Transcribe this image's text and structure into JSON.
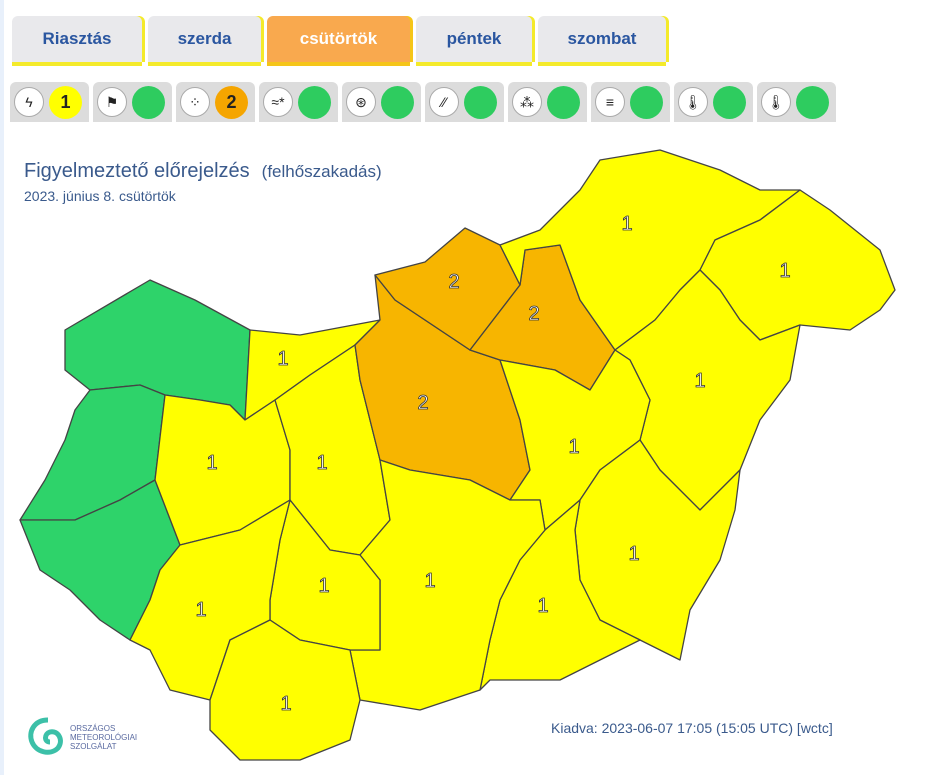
{
  "tabs": [
    {
      "label": "Riasztás"
    },
    {
      "label": "szerda"
    },
    {
      "label": "csütörtök",
      "active": true
    },
    {
      "label": "péntek"
    },
    {
      "label": "szombat"
    }
  ],
  "hazards": [
    {
      "icon": "lightning-icon",
      "glyph": "ϟ",
      "level": "1",
      "color": "#ffff00"
    },
    {
      "icon": "windsock-icon",
      "glyph": "⚑",
      "level": "",
      "color": "#2ecc5f"
    },
    {
      "icon": "cloudburst-icon",
      "glyph": "⁘",
      "level": "2",
      "color": "#f5a500"
    },
    {
      "icon": "snow-drift-icon",
      "glyph": "≈*",
      "level": "",
      "color": "#2ecc5f"
    },
    {
      "icon": "snow-icon",
      "glyph": "⊛",
      "level": "",
      "color": "#2ecc5f"
    },
    {
      "icon": "freezing-rain-icon",
      "glyph": "⁄⁄",
      "level": "",
      "color": "#2ecc5f"
    },
    {
      "icon": "heavy-snow-icon",
      "glyph": "⁂",
      "level": "",
      "color": "#2ecc5f"
    },
    {
      "icon": "fog-icon",
      "glyph": "≡",
      "level": "",
      "color": "#2ecc5f"
    },
    {
      "icon": "cold-icon",
      "glyph": "🌡",
      "level": "",
      "color": "#2ecc5f"
    },
    {
      "icon": "heat-icon",
      "glyph": "🌡",
      "level": "",
      "color": "#2ecc5f"
    }
  ],
  "header": {
    "title": "Figyelmeztető előrejelzés",
    "subtitle": "(felhőszakadás)",
    "date": "2023. június 8. csütörtök"
  },
  "colors": {
    "green": "#2ed36a",
    "yellow": "#ffff00",
    "orange": "#f7b500"
  },
  "regions": [
    {
      "name": "gyor-moson-sopron",
      "level": "",
      "color": "green"
    },
    {
      "name": "vas",
      "level": "",
      "color": "green"
    },
    {
      "name": "zala",
      "level": "",
      "color": "green"
    },
    {
      "name": "komarom-esztergom",
      "level": "1",
      "color": "yellow"
    },
    {
      "name": "veszprem",
      "level": "1",
      "color": "yellow"
    },
    {
      "name": "fejer",
      "level": "1",
      "color": "yellow"
    },
    {
      "name": "pest",
      "level": "2",
      "color": "orange"
    },
    {
      "name": "nograd",
      "level": "2",
      "color": "orange"
    },
    {
      "name": "heves",
      "level": "2",
      "color": "orange"
    },
    {
      "name": "borsod-abauj-zemplen",
      "level": "1",
      "color": "yellow"
    },
    {
      "name": "szabolcs-szatmar-bereg",
      "level": "1",
      "color": "yellow"
    },
    {
      "name": "hajdu-bihar",
      "level": "1",
      "color": "yellow"
    },
    {
      "name": "jasz-nagykun-szolnok",
      "level": "1",
      "color": "yellow"
    },
    {
      "name": "bekes",
      "level": "1",
      "color": "yellow"
    },
    {
      "name": "csongrad",
      "level": "1",
      "color": "yellow"
    },
    {
      "name": "bacs-kiskun",
      "level": "1",
      "color": "yellow"
    },
    {
      "name": "tolna",
      "level": "1",
      "color": "yellow"
    },
    {
      "name": "somogy",
      "level": "1",
      "color": "yellow"
    },
    {
      "name": "baranya",
      "level": "1",
      "color": "yellow"
    }
  ],
  "logo": {
    "line1": "ORSZÁGOS",
    "line2": "METEOROLÓGIAI",
    "line3": "SZOLGÁLAT"
  },
  "footer": {
    "issued": "Kiadva: 2023-06-07 17:05 (15:05 UTC) [wctc]"
  }
}
